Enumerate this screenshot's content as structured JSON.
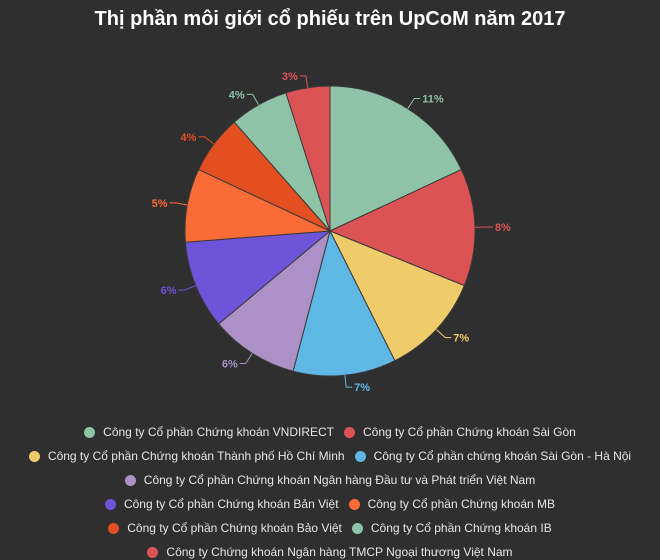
{
  "chart_data": {
    "type": "pie",
    "title": "Thị phần môi giới cổ phiếu trên UpCoM năm 2017",
    "categories": [
      "Công ty Cổ phần Chứng khoán VNDIRECT",
      "Công ty Cổ phần Chứng khoán Sài Gòn",
      "Công ty Cổ phần Chứng khoán Thành phố Hồ Chí Minh",
      "Công ty Cổ phần chứng khoán Sài Gòn - Hà Nội",
      "Công ty Cổ phần Chứng khoán Ngân hàng Đầu tư và Phát triển Việt Nam",
      "Công ty Cổ phần Chứng khoán Bản Việt",
      "Công ty Cổ phần Chứng khoán MB",
      "Công ty Cổ phần Chứng khoán Bảo Việt",
      "Công ty Cổ phần Chứng khoán IB",
      "Công ty Chứng khoán Ngân hàng TMCP Ngoại thương Việt Nam"
    ],
    "values": [
      11,
      8,
      7,
      7,
      6,
      6,
      5,
      4,
      4,
      3
    ],
    "labels": [
      "11%",
      "8%",
      "7%",
      "7%",
      "6%",
      "6%",
      "5%",
      "4%",
      "4%",
      "3%"
    ],
    "colors": [
      "#8ec3a7",
      "#dc5356",
      "#f0cb69",
      "#5fb7e5",
      "#ab91c5",
      "#6e54d9",
      "#fd6b36",
      "#e44f21",
      "#8ec3a7",
      "#dc5356"
    ],
    "legend_position": "bottom",
    "unit": "%"
  },
  "header": {
    "title": "Thị phần môi giới cổ phiếu trên UpCoM năm 2017"
  },
  "legend": {
    "items": [
      {
        "label": "Công ty Cổ phần Chứng khoán VNDIRECT",
        "color": "#8ec3a7"
      },
      {
        "label": "Công ty Cổ phần Chứng khoán Sài Gòn",
        "color": "#dc5356"
      },
      {
        "label": "Công ty Cổ phần Chứng khoán Thành phố Hồ Chí Minh",
        "color": "#f0cb69"
      },
      {
        "label": "Công ty Cổ phần chứng khoán Sài Gòn - Hà Nội",
        "color": "#5fb7e5"
      },
      {
        "label": "Công ty Cổ phần Chứng khoán Ngân hàng Đầu tư và Phát triển Việt Nam",
        "color": "#ab91c5"
      },
      {
        "label": "Công ty Cổ phần Chứng khoán Bản Việt",
        "color": "#6e54d9"
      },
      {
        "label": "Công ty Cổ phần Chứng khoán MB",
        "color": "#fd6b36"
      },
      {
        "label": "Công ty Cổ phần Chứng khoán Bảo Việt",
        "color": "#e44f21"
      },
      {
        "label": "Công ty Cổ phần Chứng khoán IB",
        "color": "#8ec3a7"
      },
      {
        "label": "Công ty Chứng khoán Ngân hàng TMCP Ngoại thương Việt Nam",
        "color": "#dc5356"
      }
    ]
  }
}
